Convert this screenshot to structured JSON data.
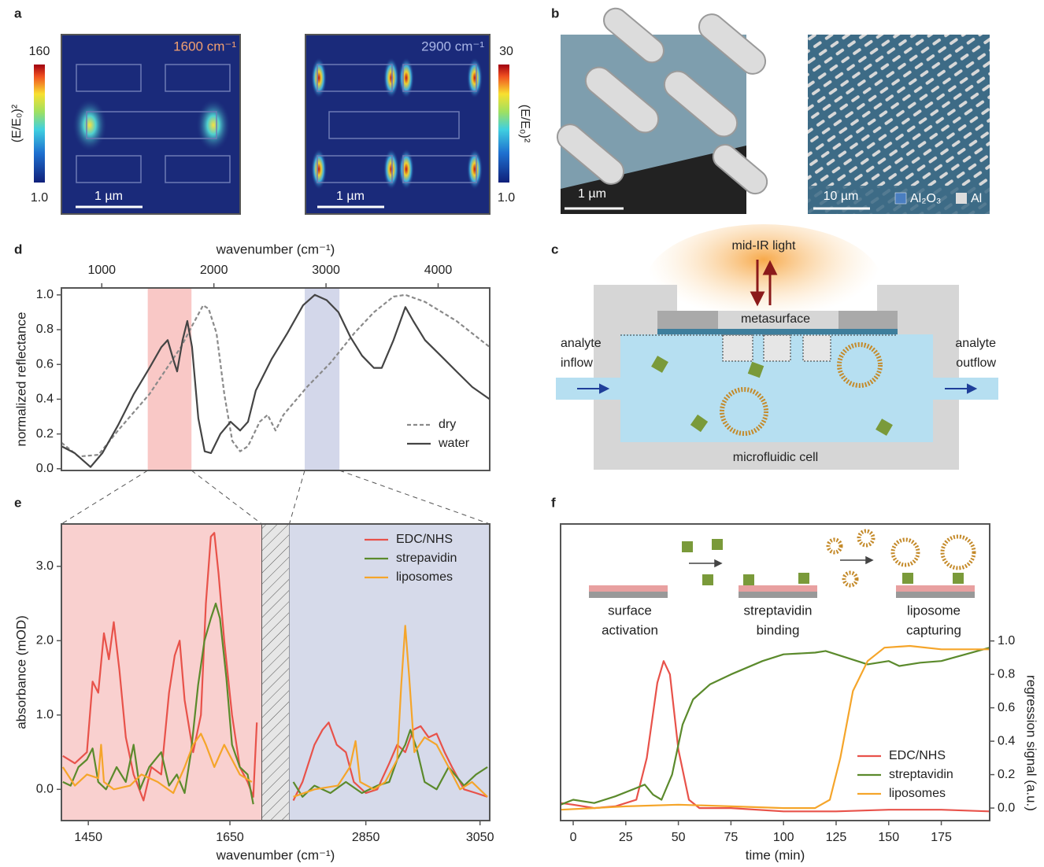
{
  "panels": [
    "a",
    "b",
    "c",
    "d",
    "e",
    "f"
  ],
  "field_maps": [
    {
      "label": "1600 cm⁻¹",
      "colorbar_max": "160",
      "colorbar_min": "1.0",
      "colorbar_title": "(E/E₀)²",
      "scale_bar": "1 µm"
    },
    {
      "label": "2900 cm⁻¹",
      "colorbar_max": "30",
      "colorbar_min": "1.0",
      "colorbar_title": "(E/E₀)²",
      "scale_bar": "1 µm"
    }
  ],
  "sem_images": [
    {
      "scale_bar": "1 µm"
    },
    {
      "scale_bar": "10 µm",
      "legend": [
        "Al₂O₃",
        "Al"
      ]
    }
  ],
  "setup": {
    "light": "mid-IR light",
    "metasurface": "metasurface",
    "inflow": [
      "analyte",
      "inflow"
    ],
    "outflow": [
      "analyte",
      "outflow"
    ],
    "cell": "microfluidic cell"
  },
  "chart_data": [
    {
      "type": "line",
      "xlabel": "wavenumber (cm⁻¹)",
      "ylabel": "normalized reflectance",
      "xaxis_position": "top",
      "xlim": [
        640,
        4460
      ],
      "xticks": [
        1000,
        2000,
        3000,
        4000
      ],
      "ylim": [
        -0.01,
        1.04
      ],
      "yticks": [
        {
          "value": 0,
          "label": "0.0"
        },
        0.2,
        0.4,
        0.6,
        0.8,
        {
          "value": 1,
          "label": "1.0"
        }
      ],
      "highlights": [
        {
          "range": [
            1410,
            1800
          ],
          "color": "#f9c8c6"
        },
        {
          "range": [
            2810,
            3120
          ],
          "color": "#d3d7ea"
        }
      ],
      "legend": "lower right",
      "series": [
        {
          "name": "dry",
          "color": "#8a8a8a",
          "linestyle": "dashed",
          "x": [
            640,
            794,
            970,
            1145,
            1426,
            1707,
            1812,
            1904,
            1953,
            2023,
            2093,
            2164,
            2234,
            2304,
            2409,
            2479,
            2550,
            2620,
            2830,
            3041,
            3252,
            3427,
            3602,
            3708,
            3883,
            4164,
            4459
          ],
          "values": [
            0.15,
            0.07,
            0.08,
            0.22,
            0.43,
            0.7,
            0.83,
            0.94,
            0.92,
            0.78,
            0.43,
            0.16,
            0.1,
            0.13,
            0.27,
            0.31,
            0.22,
            0.31,
            0.47,
            0.61,
            0.78,
            0.9,
            0.99,
            1.0,
            0.96,
            0.85,
            0.7
          ]
        },
        {
          "name": "water",
          "color": "#444444",
          "linestyle": "solid",
          "x": [
            640,
            759,
            900,
            1005,
            1145,
            1286,
            1426,
            1532,
            1588,
            1637,
            1672,
            1721,
            1763,
            1805,
            1861,
            1918,
            1974,
            2058,
            2149,
            2234,
            2304,
            2374,
            2514,
            2655,
            2795,
            2900,
            3006,
            3111,
            3216,
            3322,
            3427,
            3497,
            3602,
            3708,
            3778,
            3883,
            4024,
            4164,
            4304,
            4459
          ],
          "values": [
            0.13,
            0.09,
            0.01,
            0.09,
            0.25,
            0.43,
            0.58,
            0.7,
            0.74,
            0.63,
            0.56,
            0.74,
            0.85,
            0.7,
            0.29,
            0.1,
            0.09,
            0.2,
            0.27,
            0.22,
            0.27,
            0.45,
            0.63,
            0.78,
            0.94,
            1.0,
            0.97,
            0.9,
            0.76,
            0.65,
            0.58,
            0.58,
            0.74,
            0.93,
            0.85,
            0.74,
            0.65,
            0.56,
            0.47,
            0.4
          ]
        }
      ]
    },
    {
      "type": "line",
      "xlabel": "wavenumber (cm⁻¹)",
      "ylabel": "absorbance (mOD)",
      "xaxis_position": "bottom",
      "xlim": [
        1412,
        3067
      ],
      "xbreak": [
        1695,
        2716
      ],
      "xticks": [
        1450,
        1650,
        2850,
        3050
      ],
      "ylim": [
        -0.42,
        3.57
      ],
      "yticks": [
        {
          "value": 0,
          "label": "0.0"
        },
        {
          "value": 1,
          "label": "1.0"
        },
        {
          "value": 2,
          "label": "2.0"
        },
        {
          "value": 3,
          "label": "3.0"
        }
      ],
      "background_colors": [
        "#f9d0cf",
        "#d6daea"
      ],
      "legend": "upper right",
      "series": [
        {
          "name": "EDC/NHS",
          "color": "#e8524a",
          "linestyle": "solid",
          "x": [
            1414,
            1431,
            1448,
            1456,
            1464,
            1472,
            1479,
            1486,
            1494,
            1503,
            1514,
            1528,
            1539,
            1553,
            1564,
            1572,
            1579,
            1586,
            1598,
            1609,
            1616,
            1623,
            1628,
            1634,
            1642,
            1653,
            1664,
            1675,
            1683,
            1688,
            2723,
            2739,
            2760,
            2774,
            2785,
            2799,
            2815,
            2829,
            2850,
            2870,
            2891,
            2905,
            2919,
            2933,
            2946,
            2960,
            2974,
            2988,
            3001,
            3022,
            3043,
            3063
          ],
          "values": [
            0.45,
            0.35,
            0.5,
            1.45,
            1.3,
            2.1,
            1.75,
            2.25,
            1.6,
            0.7,
            0.2,
            -0.15,
            0.3,
            0.2,
            1.3,
            1.8,
            2.0,
            1.2,
            0.5,
            1.0,
            2.5,
            3.4,
            3.45,
            2.9,
            2.0,
            1.0,
            0.3,
            0.1,
            -0.1,
            0.9,
            -0.15,
            0.1,
            0.6,
            0.8,
            0.9,
            0.6,
            0.5,
            0.1,
            -0.05,
            0.0,
            0.35,
            0.6,
            0.5,
            0.8,
            0.85,
            0.7,
            0.75,
            0.5,
            0.3,
            0.0,
            -0.05,
            -0.1
          ]
        },
        {
          "name": "strepavidin",
          "color": "#5b8a2c",
          "linestyle": "solid",
          "x": [
            1414,
            1425,
            1436,
            1448,
            1456,
            1464,
            1475,
            1490,
            1503,
            1514,
            1523,
            1536,
            1553,
            1564,
            1575,
            1586,
            1595,
            1605,
            1614,
            1623,
            1630,
            1636,
            1645,
            1653,
            1664,
            1675,
            1683,
            2723,
            2739,
            2760,
            2788,
            2815,
            2843,
            2870,
            2891,
            2905,
            2919,
            2928,
            2939,
            2953,
            2974,
            2995,
            3022,
            3043,
            3063
          ],
          "values": [
            0.1,
            0.05,
            0.3,
            0.4,
            0.55,
            0.1,
            0.0,
            0.3,
            0.1,
            0.6,
            0.0,
            0.3,
            0.5,
            0.05,
            0.2,
            -0.05,
            0.5,
            1.4,
            2.0,
            2.3,
            2.5,
            2.3,
            1.5,
            0.6,
            0.3,
            0.2,
            -0.2,
            0.1,
            -0.1,
            0.05,
            -0.05,
            0.1,
            -0.05,
            0.05,
            0.1,
            0.4,
            0.6,
            0.8,
            0.55,
            0.1,
            0.0,
            0.3,
            0.05,
            0.2,
            0.3
          ]
        },
        {
          "name": "liposomes",
          "color": "#f5a52a",
          "linestyle": "solid",
          "x": [
            1414,
            1431,
            1448,
            1464,
            1468,
            1472,
            1486,
            1509,
            1525,
            1548,
            1570,
            1586,
            1598,
            1609,
            1616,
            1628,
            1642,
            1653,
            1664,
            1681,
            2723,
            2760,
            2801,
            2822,
            2832,
            2840,
            2864,
            2884,
            2905,
            2912,
            2919,
            2926,
            2935,
            2953,
            2974,
            2995,
            3015,
            3036,
            3063
          ],
          "values": [
            0.3,
            0.05,
            0.2,
            0.15,
            0.6,
            0.1,
            0.0,
            0.05,
            0.2,
            0.1,
            -0.05,
            0.3,
            0.6,
            0.75,
            0.6,
            0.3,
            0.6,
            0.4,
            0.2,
            0.1,
            -0.1,
            0.0,
            0.05,
            0.3,
            0.65,
            0.1,
            0.0,
            0.1,
            0.4,
            1.4,
            2.2,
            1.5,
            0.5,
            0.7,
            0.6,
            0.3,
            0.0,
            0.1,
            -0.1
          ]
        }
      ]
    },
    {
      "type": "line",
      "xlabel": "time (min)",
      "ylabel": "regression signal (a.u.)",
      "xaxis_position": "bottom",
      "yaxis_position": "right",
      "xlim": [
        -6,
        198
      ],
      "xticks": [
        0,
        25,
        50,
        75,
        100,
        125,
        150,
        175
      ],
      "ylim": [
        -0.075,
        1.7
      ],
      "yticks": [
        {
          "value": 0,
          "label": "0.0"
        },
        0.2,
        0.4,
        0.6,
        0.8,
        {
          "value": 1,
          "label": "1.0"
        }
      ],
      "annotations": [
        [
          "surface",
          "activation"
        ],
        [
          "streptavidin",
          "binding"
        ],
        [
          "liposome",
          "capturing"
        ]
      ],
      "legend": "lower right",
      "series": [
        {
          "name": "EDC/NHS",
          "color": "#e8524a",
          "linestyle": "solid",
          "x": [
            -6,
            0,
            10,
            20,
            30,
            35,
            40,
            43,
            46,
            50,
            55,
            60,
            75,
            100,
            125,
            150,
            175,
            198
          ],
          "values": [
            0.03,
            0.02,
            0.0,
            0.01,
            0.05,
            0.3,
            0.75,
            0.88,
            0.8,
            0.35,
            0.05,
            0.0,
            0.0,
            -0.02,
            -0.02,
            -0.01,
            -0.01,
            -0.02
          ]
        },
        {
          "name": "streptavidin",
          "color": "#5b8a2c",
          "linestyle": "solid",
          "x": [
            -6,
            0,
            10,
            20,
            30,
            34,
            38,
            42,
            47,
            52,
            57,
            65,
            75,
            90,
            100,
            115,
            120,
            130,
            140,
            150,
            155,
            165,
            175,
            198
          ],
          "values": [
            0.02,
            0.05,
            0.03,
            0.07,
            0.12,
            0.14,
            0.08,
            0.05,
            0.2,
            0.5,
            0.65,
            0.74,
            0.8,
            0.88,
            0.92,
            0.93,
            0.94,
            0.9,
            0.86,
            0.88,
            0.85,
            0.87,
            0.88,
            0.96
          ]
        },
        {
          "name": "liposomes",
          "color": "#f5a52a",
          "linestyle": "solid",
          "x": [
            -6,
            10,
            25,
            50,
            75,
            100,
            115,
            122,
            127,
            133,
            140,
            148,
            160,
            175,
            198
          ],
          "values": [
            -0.01,
            0.0,
            0.01,
            0.02,
            0.01,
            0.0,
            0.0,
            0.05,
            0.3,
            0.7,
            0.88,
            0.96,
            0.97,
            0.95,
            0.95
          ]
        }
      ]
    }
  ]
}
